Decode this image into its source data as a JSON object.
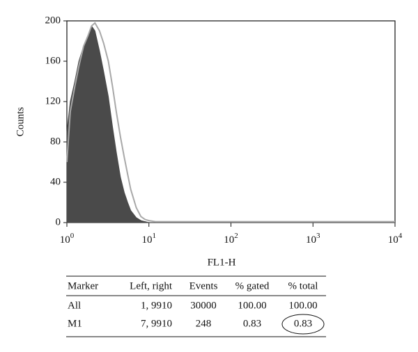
{
  "chart_data": {
    "type": "area",
    "xlabel": "FL1-H",
    "ylabel": "Counts",
    "x": [
      1,
      1.1,
      1.25,
      1.4,
      1.6,
      1.8,
      2,
      2.2,
      2.5,
      2.8,
      3.2,
      3.6,
      4,
      4.5,
      5,
      5.5,
      6,
      7,
      8,
      9,
      10,
      12,
      15,
      20,
      100,
      1000,
      10000
    ],
    "series": [
      {
        "color": "#4a4a4a",
        "style": "filled",
        "values": [
          90,
          120,
          140,
          160,
          175,
          185,
          195,
          190,
          170,
          150,
          125,
          95,
          70,
          45,
          30,
          20,
          12,
          5,
          2,
          1,
          0,
          0,
          0,
          0,
          0,
          0,
          0
        ]
      },
      {
        "color": "#a8a8a8",
        "style": "outline",
        "values": [
          60,
          110,
          135,
          155,
          175,
          185,
          195,
          198,
          190,
          178,
          160,
          135,
          110,
          85,
          65,
          48,
          33,
          15,
          6,
          3,
          2,
          1,
          1,
          1,
          1,
          1,
          1
        ]
      }
    ],
    "xlim": [
      1,
      10000
    ],
    "xscale": "log",
    "xticks": [
      {
        "value": 1,
        "label": "10",
        "exponent": "0"
      },
      {
        "value": 10,
        "label": "10",
        "exponent": "1"
      },
      {
        "value": 100,
        "label": "10",
        "exponent": "2"
      },
      {
        "value": 1000,
        "label": "10",
        "exponent": "3"
      },
      {
        "value": 10000,
        "label": "10",
        "exponent": "4"
      }
    ],
    "ylim": [
      0,
      200
    ],
    "yticks": [
      0,
      40,
      80,
      120,
      160,
      200
    ]
  },
  "table": {
    "header": [
      "Marker",
      "Left, right",
      "Events",
      "% gated",
      "% total"
    ],
    "rows": [
      [
        "All",
        "1, 9910",
        "30000",
        "100.00",
        "100.00"
      ],
      [
        "M1",
        "7, 9910",
        "248",
        "0.83",
        "0.83"
      ]
    ]
  }
}
